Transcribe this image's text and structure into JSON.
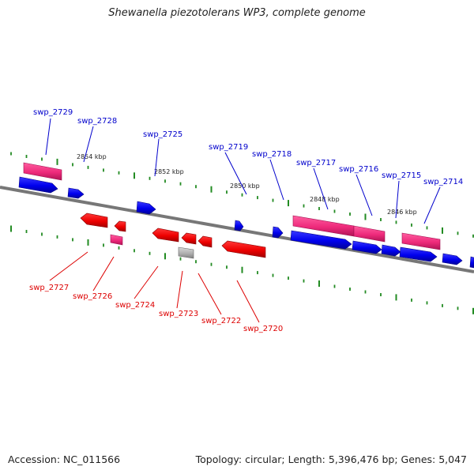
{
  "title": "Shewanella piezotolerans WP3, complete genome",
  "footer": {
    "accession": "Accession: NC_011566",
    "summary": "Topology: circular; Length: 5,396,476 bp; Genes: 5,047"
  },
  "colors": {
    "forward_gene": "#0000ee",
    "reverse_gene": "#ee0000",
    "rna_forward": "#ee2a7b",
    "rna_reverse": "#ee2a7b",
    "pseudo": "#aaaaaa",
    "backbone": "#777777",
    "tick": "#228b22",
    "forward_label": "#0000cc",
    "reverse_label": "#dd0000"
  },
  "scale_labels": [
    "2854 kbp",
    "2852 kbp",
    "2850 kbp",
    "2848 kbp",
    "2846 kbp"
  ],
  "forward_genes": [
    {
      "label": "swp_2729",
      "kind": "rna"
    },
    {
      "label": "swp_2728",
      "kind": "gene"
    },
    {
      "label": "swp_2725",
      "kind": "gene"
    },
    {
      "label": "swp_2719",
      "kind": "gene"
    },
    {
      "label": "swp_2718",
      "kind": "gene"
    },
    {
      "label": "swp_2717",
      "kind": "rna"
    },
    {
      "label": "swp_2716",
      "kind": "rna"
    },
    {
      "label": "swp_2715",
      "kind": "gene"
    },
    {
      "label": "swp_2714",
      "kind": "rna"
    }
  ],
  "reverse_genes": [
    {
      "label": "swp_2727",
      "kind": "gene"
    },
    {
      "label": "swp_2726",
      "kind": "gene"
    },
    {
      "label": "swp_2724",
      "kind": "gene"
    },
    {
      "label": "swp_2723",
      "kind": "pseudo"
    },
    {
      "label": "swp_2722",
      "kind": "gene"
    },
    {
      "label": "swp_2720",
      "kind": "gene"
    }
  ]
}
